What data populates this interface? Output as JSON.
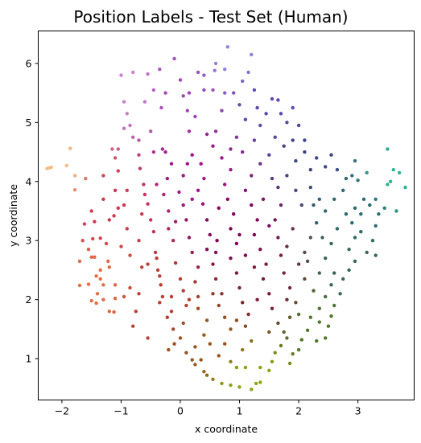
{
  "chart_data": {
    "type": "scatter",
    "title": "Position Labels - Test Set (Human)",
    "xlabel": "x coordinate",
    "ylabel": "y coordinate",
    "xlim": [
      -2.4,
      3.95
    ],
    "ylim": [
      0.3,
      6.55
    ],
    "xticks": [
      -2,
      -1,
      0,
      1,
      2,
      3
    ],
    "yticks": [
      1,
      2,
      3,
      4,
      5,
      6
    ],
    "grid": false,
    "legend": "none",
    "color_encoding": "hue varies with position (orange left, purple top, teal right, olive bottom, maroon center)",
    "points": [
      [
        -2.25,
        4.22
      ],
      [
        -2.22,
        4.23
      ],
      [
        -2.18,
        4.24
      ],
      [
        -1.92,
        4.27
      ],
      [
        -1.86,
        4.56
      ],
      [
        -1.78,
        4.1
      ],
      [
        -1.78,
        3.86
      ],
      [
        -1.6,
        4.05
      ],
      [
        -1.62,
        3.28
      ],
      [
        -1.65,
        3.0
      ],
      [
        -1.55,
        2.85
      ],
      [
        -1.5,
        2.72
      ],
      [
        -1.45,
        2.72
      ],
      [
        -1.48,
        3.03
      ],
      [
        -1.45,
        3.32
      ],
      [
        -1.35,
        3.04
      ],
      [
        -1.42,
        2.4
      ],
      [
        -1.35,
        2.35
      ],
      [
        -1.3,
        2.25
      ],
      [
        -1.4,
        2.1
      ],
      [
        -1.5,
        1.98
      ],
      [
        -1.55,
        2.26
      ],
      [
        -1.7,
        2.24
      ],
      [
        -1.42,
        1.94
      ],
      [
        -1.3,
        2.0
      ],
      [
        -1.2,
        1.8
      ],
      [
        -1.12,
        1.79
      ],
      [
        -1.1,
        2.02
      ],
      [
        -1.22,
        2.65
      ],
      [
        -1.25,
        2.95
      ],
      [
        -1.2,
        3.35
      ],
      [
        -1.12,
        3.42
      ],
      [
        -1.05,
        3.55
      ],
      [
        -1.15,
        4.55
      ],
      [
        -1.1,
        4.4
      ],
      [
        -1.05,
        4.55
      ],
      [
        -1.05,
        4.18
      ],
      [
        -1.1,
        3.85
      ],
      [
        -0.95,
        3.6
      ],
      [
        -0.9,
        3.2
      ],
      [
        -0.85,
        2.75
      ],
      [
        -0.85,
        2.2
      ],
      [
        -0.8,
        1.55
      ],
      [
        -0.75,
        1.8
      ],
      [
        -0.7,
        2.1
      ],
      [
        -1.0,
        5.8
      ],
      [
        -0.95,
        5.35
      ],
      [
        -0.9,
        5.15
      ],
      [
        -0.85,
        4.95
      ],
      [
        -0.95,
        4.9
      ],
      [
        -0.8,
        4.75
      ],
      [
        -0.7,
        4.7
      ],
      [
        -0.68,
        4.22
      ],
      [
        -0.62,
        3.95
      ],
      [
        -0.6,
        3.78
      ],
      [
        -0.55,
        3.62
      ],
      [
        -0.5,
        3.35
      ],
      [
        -0.45,
        3.15
      ],
      [
        -0.42,
        2.8
      ],
      [
        -0.4,
        2.7
      ],
      [
        -0.38,
        2.5
      ],
      [
        -0.35,
        2.4
      ],
      [
        -0.33,
        2.25
      ],
      [
        -0.3,
        2.05
      ],
      [
        -0.22,
        1.7
      ],
      [
        -0.15,
        1.8
      ],
      [
        -0.12,
        1.5
      ],
      [
        -0.1,
        1.25
      ],
      [
        -0.2,
        1.15
      ],
      [
        -0.55,
        1.35
      ],
      [
        -0.8,
        5.85
      ],
      [
        -0.55,
        5.82
      ],
      [
        -0.45,
        5.55
      ],
      [
        -0.35,
        5.9
      ],
      [
        -0.25,
        5.5
      ],
      [
        -0.32,
        5.25
      ],
      [
        -0.5,
        4.85
      ],
      [
        -0.45,
        4.5
      ],
      [
        -0.25,
        4.5
      ],
      [
        -0.15,
        4.3
      ],
      [
        -0.22,
        4.05
      ],
      [
        -0.28,
        3.78
      ],
      [
        -0.2,
        3.5
      ],
      [
        -0.08,
        3.32
      ],
      [
        -0.12,
        3.0
      ],
      [
        -0.08,
        2.62
      ],
      [
        0.0,
        2.35
      ],
      [
        0.05,
        2.15
      ],
      [
        0.1,
        1.9
      ],
      [
        0.05,
        1.6
      ],
      [
        0.0,
        1.35
      ],
      [
        0.1,
        1.1
      ],
      [
        0.2,
        0.98
      ],
      [
        0.35,
        0.98
      ],
      [
        0.25,
        1.2
      ],
      [
        0.4,
        1.4
      ],
      [
        0.45,
        1.65
      ],
      [
        0.3,
        1.85
      ],
      [
        0.15,
        2.0
      ],
      [
        0.25,
        2.3
      ],
      [
        0.3,
        2.55
      ],
      [
        0.2,
        2.8
      ],
      [
        0.15,
        3.05
      ],
      [
        0.1,
        3.35
      ],
      [
        0.05,
        3.6
      ],
      [
        -0.02,
        3.82
      ],
      [
        0.05,
        4.1
      ],
      [
        0.12,
        4.3
      ],
      [
        0.2,
        4.45
      ],
      [
        0.35,
        4.3
      ],
      [
        0.4,
        4.05
      ],
      [
        0.3,
        3.85
      ],
      [
        0.38,
        3.62
      ],
      [
        0.45,
        3.35
      ],
      [
        0.5,
        3.1
      ],
      [
        0.45,
        2.85
      ],
      [
        0.55,
        2.6
      ],
      [
        0.6,
        2.35
      ],
      [
        0.55,
        2.1
      ],
      [
        0.65,
        1.9
      ],
      [
        0.75,
        1.7
      ],
      [
        0.85,
        1.5
      ],
      [
        0.75,
        1.25
      ],
      [
        0.65,
        1.05
      ],
      [
        0.85,
        0.95
      ],
      [
        -0.1,
        6.08
      ],
      [
        0.0,
        5.72
      ],
      [
        0.05,
        5.45
      ],
      [
        0.12,
        5.2
      ],
      [
        0.15,
        4.85
      ],
      [
        0.25,
        5.1
      ],
      [
        0.3,
        5.85
      ],
      [
        0.4,
        5.8
      ],
      [
        0.4,
        5.55
      ],
      [
        0.55,
        5.55
      ],
      [
        0.58,
        5.88
      ],
      [
        0.6,
        6.0
      ],
      [
        0.75,
        5.9
      ],
      [
        0.8,
        6.28
      ],
      [
        0.75,
        5.5
      ],
      [
        0.7,
        5.2
      ],
      [
        0.6,
        4.85
      ],
      [
        0.55,
        4.6
      ],
      [
        0.7,
        4.4
      ],
      [
        0.85,
        4.2
      ],
      [
        0.75,
        3.95
      ],
      [
        0.8,
        3.7
      ],
      [
        0.9,
        3.45
      ],
      [
        0.85,
        3.2
      ],
      [
        0.95,
        2.95
      ],
      [
        0.85,
        2.7
      ],
      [
        0.95,
        2.45
      ],
      [
        1.0,
        2.2
      ],
      [
        1.05,
        1.95
      ],
      [
        1.15,
        1.75
      ],
      [
        1.1,
        1.55
      ],
      [
        1.2,
        1.3
      ],
      [
        1.05,
        1.15
      ],
      [
        0.95,
        0.85
      ],
      [
        0.25,
        0.9
      ],
      [
        0.4,
        0.78
      ],
      [
        0.45,
        0.72
      ],
      [
        0.55,
        0.65
      ],
      [
        0.7,
        0.58
      ],
      [
        0.85,
        0.55
      ],
      [
        1.0,
        0.52
      ],
      [
        1.2,
        0.48
      ],
      [
        1.28,
        0.58
      ],
      [
        1.35,
        0.6
      ],
      [
        1.1,
        0.85
      ],
      [
        1.35,
        0.85
      ],
      [
        1.5,
        0.8
      ],
      [
        1.55,
        0.95
      ],
      [
        1.6,
        1.1
      ],
      [
        1.7,
        1.22
      ],
      [
        1.8,
        1.35
      ],
      [
        1.9,
        1.08
      ],
      [
        2.0,
        1.15
      ],
      [
        2.05,
        1.32
      ],
      [
        2.15,
        1.48
      ],
      [
        2.2,
        1.7
      ],
      [
        2.35,
        1.62
      ],
      [
        2.5,
        1.55
      ],
      [
        2.45,
        1.35
      ],
      [
        2.3,
        1.3
      ],
      [
        2.55,
        1.72
      ],
      [
        2.6,
        1.9
      ],
      [
        2.7,
        2.1
      ],
      [
        2.75,
        2.35
      ],
      [
        2.6,
        2.45
      ],
      [
        2.55,
        2.25
      ],
      [
        2.45,
        2.05
      ],
      [
        2.35,
        1.85
      ],
      [
        0.9,
        5.5
      ],
      [
        1.0,
        5.3
      ],
      [
        1.05,
        5.7
      ],
      [
        1.15,
        5.85
      ],
      [
        1.2,
        6.15
      ],
      [
        1.25,
        5.55
      ],
      [
        1.3,
        5.25
      ],
      [
        1.35,
        4.95
      ],
      [
        1.45,
        5.15
      ],
      [
        1.55,
        5.4
      ],
      [
        1.65,
        5.38
      ],
      [
        1.7,
        5.15
      ],
      [
        1.8,
        5.0
      ],
      [
        1.9,
        5.25
      ],
      [
        2.0,
        4.95
      ],
      [
        2.1,
        4.7
      ],
      [
        1.9,
        4.7
      ],
      [
        1.75,
        4.6
      ],
      [
        1.6,
        4.75
      ],
      [
        1.5,
        4.45
      ],
      [
        1.35,
        4.3
      ],
      [
        1.2,
        4.1
      ],
      [
        1.1,
        3.85
      ],
      [
        1.2,
        3.6
      ],
      [
        1.3,
        3.35
      ],
      [
        1.25,
        3.1
      ],
      [
        1.35,
        2.85
      ],
      [
        1.45,
        2.6
      ],
      [
        1.4,
        2.35
      ],
      [
        1.5,
        2.1
      ],
      [
        1.55,
        1.85
      ],
      [
        1.65,
        1.6
      ],
      [
        1.75,
        1.45
      ],
      [
        1.85,
        1.7
      ],
      [
        1.95,
        1.95
      ],
      [
        1.85,
        2.2
      ],
      [
        1.75,
        2.45
      ],
      [
        1.7,
        2.75
      ],
      [
        1.65,
        3.05
      ],
      [
        1.6,
        3.35
      ],
      [
        1.7,
        3.6
      ],
      [
        1.65,
        3.9
      ],
      [
        1.8,
        4.1
      ],
      [
        1.95,
        4.35
      ],
      [
        2.1,
        4.5
      ],
      [
        2.2,
        4.2
      ],
      [
        2.3,
        4.4
      ],
      [
        2.45,
        4.25
      ],
      [
        2.55,
        4.45
      ],
      [
        2.65,
        4.2
      ],
      [
        2.8,
        4.05
      ],
      [
        2.95,
        4.35
      ],
      [
        2.9,
        4.1
      ],
      [
        2.75,
        3.85
      ],
      [
        2.6,
        3.7
      ],
      [
        2.45,
        3.5
      ],
      [
        2.3,
        3.3
      ],
      [
        2.2,
        3.05
      ],
      [
        2.1,
        2.8
      ],
      [
        2.0,
        2.6
      ],
      [
        2.1,
        2.35
      ],
      [
        2.25,
        2.15
      ],
      [
        2.35,
        2.45
      ],
      [
        2.45,
        2.7
      ],
      [
        2.55,
        2.95
      ],
      [
        2.65,
        3.2
      ],
      [
        2.8,
        3.45
      ],
      [
        2.95,
        3.55
      ],
      [
        2.9,
        3.3
      ],
      [
        2.95,
        3.05
      ],
      [
        2.85,
        2.85
      ],
      [
        2.95,
        2.65
      ],
      [
        2.85,
        2.5
      ],
      [
        3.05,
        3.45
      ],
      [
        3.1,
        3.7
      ],
      [
        3.2,
        3.6
      ],
      [
        3.3,
        3.7
      ],
      [
        3.35,
        3.45
      ],
      [
        3.3,
        3.25
      ],
      [
        3.25,
        3.0
      ],
      [
        3.3,
        2.75
      ],
      [
        3.15,
        2.8
      ],
      [
        3.05,
        3.15
      ],
      [
        3.45,
        3.55
      ],
      [
        3.5,
        3.95
      ],
      [
        3.55,
        4.0
      ],
      [
        3.6,
        4.2
      ],
      [
        3.7,
        4.15
      ],
      [
        3.8,
        3.9
      ],
      [
        3.65,
        3.5
      ],
      [
        3.5,
        4.55
      ],
      [
        3.0,
        4.02
      ],
      [
        3.15,
        4.15
      ],
      [
        2.05,
        3.6
      ],
      [
        1.95,
        3.85
      ],
      [
        2.2,
        3.9
      ],
      [
        2.35,
        3.7
      ],
      [
        1.55,
        4.05
      ],
      [
        1.05,
        4.5
      ],
      [
        0.95,
        4.75
      ],
      [
        1.1,
        5.05
      ],
      [
        -0.55,
        2.6
      ],
      [
        -0.7,
        3.0
      ],
      [
        -0.9,
        3.85
      ],
      [
        -1.3,
        4.1
      ],
      [
        -1.0,
        2.9
      ],
      [
        -1.2,
        2.55
      ],
      [
        -1.1,
        2.25
      ],
      [
        -0.95,
        2.05
      ],
      [
        -0.65,
        2.55
      ],
      [
        -0.15,
        2.05
      ],
      [
        0.65,
        3.55
      ],
      [
        0.62,
        3.0
      ],
      [
        1.0,
        3.1
      ],
      [
        1.4,
        3.7
      ],
      [
        1.9,
        3.2
      ],
      [
        2.4,
        3.05
      ],
      [
        0.2,
        3.7
      ],
      [
        -0.4,
        3.95
      ],
      [
        -0.65,
        3.45
      ],
      [
        -0.3,
        4.55
      ],
      [
        0.45,
        4.8
      ],
      [
        0.85,
        4.55
      ],
      [
        1.25,
        4.7
      ],
      [
        1.5,
        3.25
      ],
      [
        2.15,
        2.65
      ],
      [
        1.25,
        2.55
      ],
      [
        0.3,
        2.05
      ],
      [
        -0.35,
        1.95
      ],
      [
        0.7,
        2.1
      ],
      [
        1.3,
        2.0
      ],
      [
        1.8,
        2.0
      ],
      [
        2.0,
        1.75
      ],
      [
        0.95,
        1.65
      ],
      [
        0.5,
        1.25
      ],
      [
        1.5,
        1.45
      ],
      [
        1.85,
        0.92
      ],
      [
        0.15,
        5.5
      ],
      [
        -0.6,
        5.35
      ],
      [
        -0.7,
        4.45
      ],
      [
        -1.3,
        3.7
      ],
      [
        -1.5,
        3.5
      ],
      [
        -1.7,
        2.65
      ],
      [
        -1.35,
        2.5
      ],
      [
        -0.2,
        3.2
      ],
      [
        0.6,
        2.8
      ],
      [
        1.1,
        2.75
      ],
      [
        1.8,
        2.9
      ],
      [
        2.25,
        3.6
      ]
    ]
  }
}
